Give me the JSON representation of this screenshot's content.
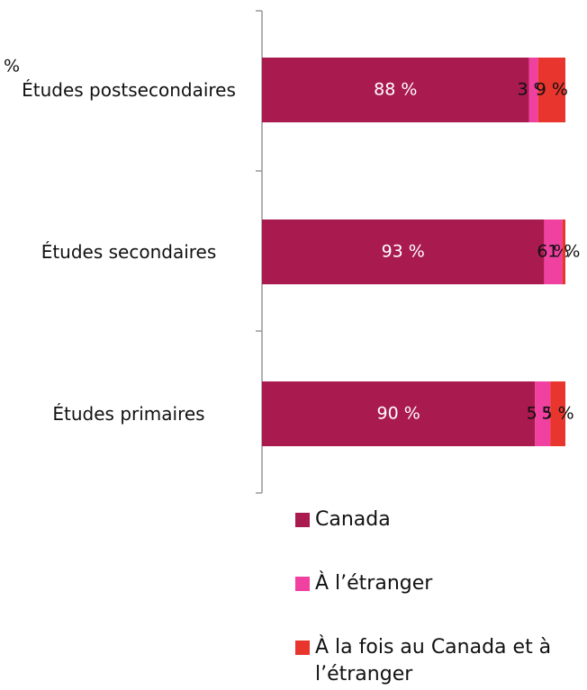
{
  "chart_data": {
    "type": "stacked-bar",
    "orientation": "horizontal",
    "annotation": "%",
    "categories": [
      "Études postsecondaires",
      "Études secondaires",
      "Études primaires"
    ],
    "series": [
      {
        "name": "Canada",
        "color": "#a91a4f",
        "label_color": "#ffffff",
        "values": [
          88,
          93,
          90
        ],
        "value_labels": [
          "88 %",
          "93 %",
          "90 %"
        ]
      },
      {
        "name": "À l’étranger",
        "color": "#f040a0",
        "label_color": "#111111",
        "values": [
          3,
          6,
          5
        ],
        "value_labels": [
          "3 %",
          "6 %",
          "5 %"
        ]
      },
      {
        "name": "À la fois au Canada et à l’étranger",
        "color": "#e8352e",
        "label_color": "#111111",
        "values": [
          9,
          1,
          5
        ],
        "value_labels": [
          "9 %",
          "1 %",
          "5 %"
        ]
      }
    ],
    "xlim": [
      0,
      100
    ]
  }
}
